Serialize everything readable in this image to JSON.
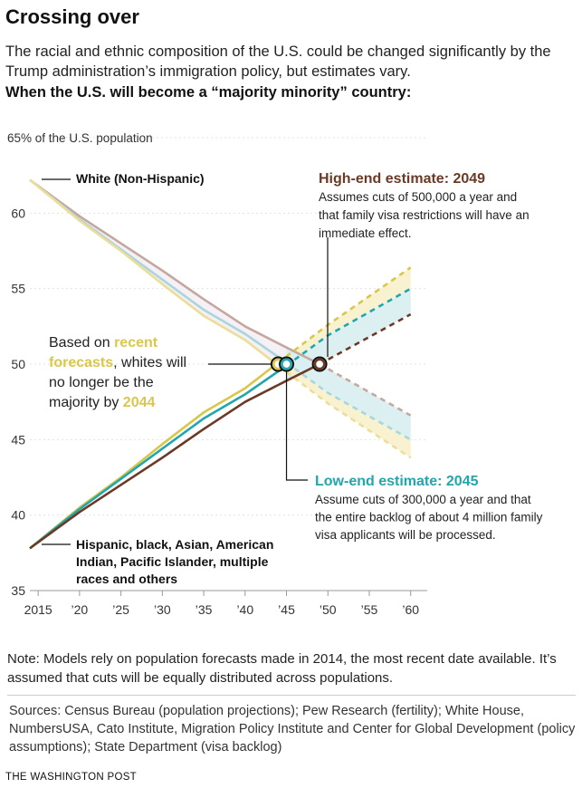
{
  "header": {
    "title": "Crossing over",
    "subtitle": "The racial and ethnic composition of the U.S. could be changed significantly by the Trump administration’s immigration policy, but estimates vary.",
    "kicker": "When the U.S. will become a “majority minority” country:"
  },
  "colors": {
    "white_series": "#a8d5d8",
    "white_series_alt": "#c9a89a",
    "minority_series": "#0f9ea6",
    "recent": "#d9c74a",
    "low": "#20a6ad",
    "high": "#6b3a26",
    "band_low": "#d8eef1",
    "band_recent": "#f7f1cc",
    "shade_white_region": "#f4f0f5"
  },
  "chart_data": {
    "type": "line",
    "y_axis_title": "65% of the U.S. population",
    "xlim": [
      2014,
      2062
    ],
    "ylim": [
      35,
      65
    ],
    "x_ticks": [
      2015,
      2020,
      2025,
      2030,
      2035,
      2040,
      2045,
      2050,
      2055,
      2060
    ],
    "x_tick_labels": [
      "2015",
      "’20",
      "’25",
      "’30",
      "’35",
      "’40",
      "’45",
      "’50",
      "’55",
      "’60"
    ],
    "y_ticks": [
      35,
      40,
      45,
      50,
      55,
      60
    ],
    "y_tick_labels": [
      "35",
      "40",
      "45",
      "50",
      "55",
      "60"
    ],
    "series": [
      {
        "name": "White (Non-Hispanic)",
        "scenario": "recent",
        "x": [
          2014,
          2020,
          2025,
          2030,
          2035,
          2040,
          2044,
          2050,
          2060
        ],
        "y": [
          62.2,
          59.5,
          57.5,
          55.3,
          53.2,
          51.6,
          49.9,
          47.4,
          43.8
        ]
      },
      {
        "name": "White (Non-Hispanic)",
        "scenario": "low",
        "x": [
          2014,
          2020,
          2025,
          2030,
          2035,
          2040,
          2045,
          2050,
          2060
        ],
        "y": [
          62.2,
          59.6,
          57.6,
          55.6,
          53.6,
          52.0,
          50.1,
          48.1,
          45.0
        ]
      },
      {
        "name": "White (Non-Hispanic)",
        "scenario": "high",
        "x": [
          2014,
          2020,
          2025,
          2030,
          2035,
          2040,
          2045,
          2049,
          2060
        ],
        "y": [
          62.2,
          59.8,
          58.0,
          56.2,
          54.3,
          52.5,
          51.1,
          50.0,
          46.6
        ]
      },
      {
        "name": "Hispanic, black, Asian, American Indian, Pacific Islander, multiple races and others",
        "scenario": "recent",
        "x": [
          2014,
          2020,
          2025,
          2030,
          2035,
          2040,
          2044,
          2050,
          2060
        ],
        "y": [
          37.8,
          40.5,
          42.5,
          44.7,
          46.8,
          48.4,
          50.1,
          52.6,
          56.4
        ]
      },
      {
        "name": "Hispanic, black, Asian, American Indian, Pacific Islander, multiple races and others",
        "scenario": "low",
        "x": [
          2014,
          2020,
          2025,
          2030,
          2035,
          2040,
          2045,
          2050,
          2060
        ],
        "y": [
          37.8,
          40.4,
          42.4,
          44.4,
          46.4,
          48.0,
          49.9,
          51.9,
          55.0
        ]
      },
      {
        "name": "Hispanic, black, Asian, American Indian, Pacific Islander, multiple races and others",
        "scenario": "high",
        "x": [
          2014,
          2020,
          2025,
          2030,
          2035,
          2040,
          2045,
          2049,
          2060
        ],
        "y": [
          37.8,
          40.2,
          42.0,
          43.8,
          45.7,
          47.5,
          48.9,
          50.0,
          53.3
        ]
      }
    ],
    "crossings": [
      {
        "scenario": "recent",
        "year": 2044,
        "value": 50
      },
      {
        "scenario": "low",
        "year": 2045,
        "value": 50
      },
      {
        "scenario": "high",
        "year": 2049,
        "value": 50
      }
    ],
    "annotations": {
      "white_label": "White (Non-Hispanic)",
      "minority_label": [
        "Hispanic, black, Asian, American",
        "Indian, Pacific Islander, multiple",
        "races and others"
      ],
      "recent": {
        "lines": [
          [
            {
              "t": "Based on ",
              "hl": false
            },
            {
              "t": "recent",
              "hl": true
            }
          ],
          [
            {
              "t": "forecasts",
              "hl": true
            },
            {
              "t": ", whites will",
              "hl": false
            }
          ],
          [
            {
              "t": "no longer be the",
              "hl": false
            }
          ],
          [
            {
              "t": "majority by ",
              "hl": false
            },
            {
              "t": "2044",
              "hl": true
            }
          ]
        ]
      },
      "high": {
        "heading": "High-end estimate: 2049",
        "body": [
          "Assumes cuts of 500,000 a year and",
          "that family visa restrictions will have an",
          "immediate effect."
        ]
      },
      "low": {
        "heading": "Low-end estimate: 2045",
        "body": [
          "Assume cuts of 300,000 a year and that",
          "the entire backlog of about 4 million family",
          "visa applicants will be processed."
        ]
      }
    }
  },
  "footer": {
    "note": "Note: Models rely on population forecasts made in 2014, the most recent date available. It’s assumed that cuts will be equally distributed across populations.",
    "sources": "Sources: Census Bureau (population projections); Pew Research (fertility); White House, NumbersUSA, Cato Institute, Migration Policy Institute and Center for Global Development (policy assumptions); State Department (visa backlog)",
    "credit": "THE WASHINGTON POST"
  }
}
